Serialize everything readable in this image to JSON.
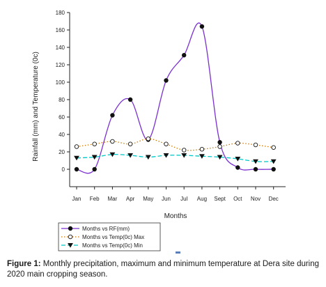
{
  "chart_data": {
    "type": "line",
    "xlabel": "Months",
    "ylabel": "Rainfall (mm) and Temperature (0c)",
    "ylim": [
      -20,
      180
    ],
    "yticks": [
      0,
      20,
      40,
      60,
      80,
      100,
      120,
      140,
      160,
      180
    ],
    "categories": [
      "Jan",
      "Feb",
      "Mar",
      "Apr",
      "May",
      "Jun",
      "Jul",
      "Aug",
      "Sept",
      "Oct",
      "Nov",
      "Dec"
    ],
    "grid": false,
    "legend_position": "bottom-left",
    "series": [
      {
        "name": "Months vs RF(mm)",
        "color": "#7a2fd0",
        "marker": "filled-circle",
        "line": "solid",
        "values": [
          0,
          0,
          62,
          80,
          34,
          102,
          131,
          164,
          31,
          2,
          0,
          0
        ]
      },
      {
        "name": "Months vs Temp(0c) Max",
        "color": "#cc7a00",
        "marker": "open-circle",
        "line": "dotted",
        "values": [
          26,
          29,
          32,
          29,
          35,
          29,
          22,
          23,
          26,
          30,
          28,
          25
        ]
      },
      {
        "name": "Months vs Temp(0c) Min",
        "color": "#00c8c8",
        "marker": "filled-triangle-down",
        "line": "dashed",
        "values": [
          13,
          14,
          17,
          16,
          14,
          16,
          16,
          15,
          14,
          12,
          9,
          9
        ]
      }
    ]
  },
  "caption": {
    "label": "Figure 1:",
    "text": " Monthly precipitation, maximum and minimum temperature at Dera site during 2020 main cropping season."
  }
}
